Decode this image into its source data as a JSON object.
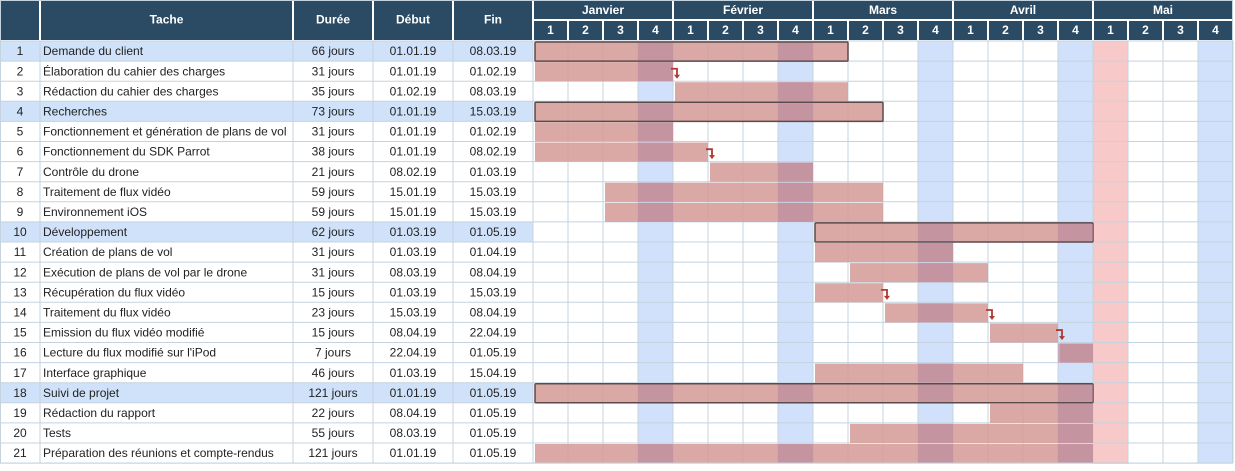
{
  "chart_data": {
    "type": "gantt",
    "colors": {
      "header_bg": "#2b4a63",
      "header_text": "#ffffff",
      "border": "#c5d3df",
      "week_shade": "#d2e1fb",
      "summary_row_bg": "#cfe2f9",
      "bar": "#d59a95",
      "bar_shaded": "#b98a9e",
      "summary_outline": "#5a4a4a",
      "today_col": "#f7c9c9",
      "arrow": "#b0392f",
      "text": "#222222"
    },
    "columns": [
      "",
      "Tache",
      "Durée",
      "Début",
      "Fin"
    ],
    "months": [
      {
        "name": "Janvier",
        "weeks": [
          "1",
          "2",
          "3",
          "4"
        ]
      },
      {
        "name": "Février",
        "weeks": [
          "1",
          "2",
          "3",
          "4"
        ]
      },
      {
        "name": "Mars",
        "weeks": [
          "1",
          "2",
          "3",
          "4"
        ]
      },
      {
        "name": "Avril",
        "weeks": [
          "1",
          "2",
          "3",
          "4"
        ]
      },
      {
        "name": "Mai",
        "weeks": [
          "1",
          "2",
          "3",
          "4"
        ]
      }
    ],
    "shaded_weeks": [
      3,
      7,
      11,
      15,
      19
    ],
    "highlight_week": 16,
    "tasks": [
      {
        "id": "1",
        "name": "Demande du client",
        "duration": "66 jours",
        "start": "01.01.19",
        "end": "08.03.19",
        "summary": true,
        "w0": 0,
        "w1": 9
      },
      {
        "id": "2",
        "name": "Élaboration du cahier des charges",
        "duration": "31 jours",
        "start": "01.01.19",
        "end": "01.02.19",
        "summary": false,
        "w0": 0,
        "w1": 4,
        "arrow": true
      },
      {
        "id": "3",
        "name": "Rédaction du cahier des charges",
        "duration": "35 jours",
        "start": "01.02.19",
        "end": "08.03.19",
        "summary": false,
        "w0": 4,
        "w1": 9
      },
      {
        "id": "4",
        "name": "Recherches",
        "duration": "73 jours",
        "start": "01.01.19",
        "end": "15.03.19",
        "summary": true,
        "w0": 0,
        "w1": 10
      },
      {
        "id": "5",
        "name": "Fonctionnement et génération de plans de vol",
        "duration": "31 jours",
        "start": "01.01.19",
        "end": "01.02.19",
        "summary": false,
        "w0": 0,
        "w1": 4
      },
      {
        "id": "6",
        "name": "Fonctionnement du SDK Parrot",
        "duration": "38 jours",
        "start": "01.01.19",
        "end": "08.02.19",
        "summary": false,
        "w0": 0,
        "w1": 5,
        "arrow": true
      },
      {
        "id": "7",
        "name": "Contrôle du drone",
        "duration": "21 jours",
        "start": "08.02.19",
        "end": "01.03.19",
        "summary": false,
        "w0": 5,
        "w1": 8
      },
      {
        "id": "8",
        "name": "Traitement de flux vidéo",
        "duration": "59 jours",
        "start": "15.01.19",
        "end": "15.03.19",
        "summary": false,
        "w0": 2,
        "w1": 10
      },
      {
        "id": "9",
        "name": "Environnement iOS",
        "duration": "59 jours",
        "start": "15.01.19",
        "end": "15.03.19",
        "summary": false,
        "w0": 2,
        "w1": 10
      },
      {
        "id": "10",
        "name": "Développement",
        "duration": "62 jours",
        "start": "01.03.19",
        "end": "01.05.19",
        "summary": true,
        "w0": 8,
        "w1": 16
      },
      {
        "id": "11",
        "name": "Création de plans de vol",
        "duration": "31 jours",
        "start": "01.03.19",
        "end": "01.04.19",
        "summary": false,
        "w0": 8,
        "w1": 12
      },
      {
        "id": "12",
        "name": "Exécution de plans de vol par le drone",
        "duration": "31 jours",
        "start": "08.03.19",
        "end": "08.04.19",
        "summary": false,
        "w0": 9,
        "w1": 13
      },
      {
        "id": "13",
        "name": "Récupération du flux vidéo",
        "duration": "15 jours",
        "start": "01.03.19",
        "end": "15.03.19",
        "summary": false,
        "w0": 8,
        "w1": 10,
        "arrow": true
      },
      {
        "id": "14",
        "name": "Traitement du flux vidéo",
        "duration": "23 jours",
        "start": "15.03.19",
        "end": "08.04.19",
        "summary": false,
        "w0": 10,
        "w1": 13,
        "arrow": true
      },
      {
        "id": "15",
        "name": "Emission du flux vidéo modifié",
        "duration": "15 jours",
        "start": "08.04.19",
        "end": "22.04.19",
        "summary": false,
        "w0": 13,
        "w1": 15,
        "arrow": true
      },
      {
        "id": "16",
        "name": "Lecture du flux modifié sur l'iPod",
        "duration": "7 jours",
        "start": "22.04.19",
        "end": "01.05.19",
        "summary": false,
        "w0": 15,
        "w1": 16
      },
      {
        "id": "17",
        "name": "Interface graphique",
        "duration": "46 jours",
        "start": "01.03.19",
        "end": "15.04.19",
        "summary": false,
        "w0": 8,
        "w1": 14
      },
      {
        "id": "18",
        "name": "Suivi de projet",
        "duration": "121 jours",
        "start": "01.01.19",
        "end": "01.05.19",
        "summary": true,
        "w0": 0,
        "w1": 16
      },
      {
        "id": "19",
        "name": "Rédaction du rapport",
        "duration": "22 jours",
        "start": "08.04.19",
        "end": "01.05.19",
        "summary": false,
        "w0": 13,
        "w1": 16
      },
      {
        "id": "20",
        "name": "Tests",
        "duration": "55 jours",
        "start": "08.03.19",
        "end": "01.05.19",
        "summary": false,
        "w0": 9,
        "w1": 16
      },
      {
        "id": "21",
        "name": "Préparation des réunions et compte-rendus",
        "duration": "121 jours",
        "start": "01.01.19",
        "end": "01.05.19",
        "summary": false,
        "w0": 0,
        "w1": 16
      }
    ]
  }
}
